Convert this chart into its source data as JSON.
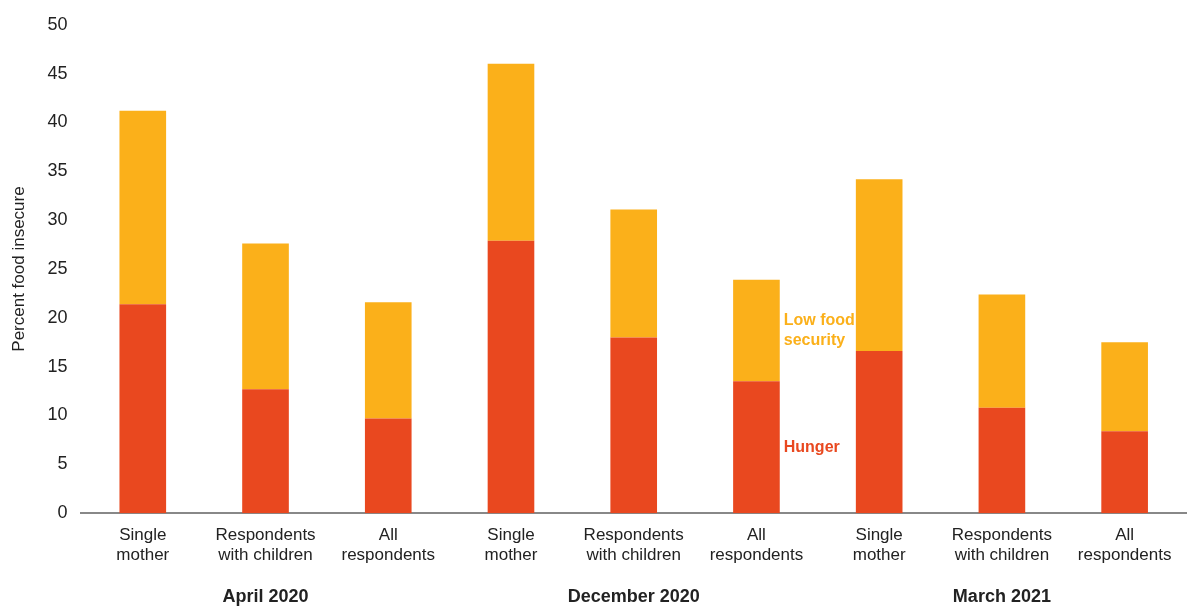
{
  "chart_data": {
    "type": "bar",
    "stacked": true,
    "ylabel": "Percent food insecure",
    "categories": [
      "Single mother",
      "Respondents with children",
      "All respondents",
      "Single mother",
      "Respondents with children",
      "All respondents",
      "Single mother",
      "Respondents with children",
      "All respondents"
    ],
    "series": [
      {
        "name": "Hunger",
        "color": "#e9481f",
        "values": [
          21.4,
          12.7,
          9.7,
          27.9,
          18.0,
          13.5,
          16.6,
          10.8,
          8.4
        ]
      },
      {
        "name": "Low food security",
        "color": "#fbb01a",
        "values": [
          19.8,
          14.9,
          11.9,
          18.1,
          13.1,
          10.4,
          17.6,
          11.6,
          9.1
        ]
      }
    ],
    "ylim": [
      0,
      50
    ],
    "yticks": [
      0,
      5,
      10,
      15,
      20,
      25,
      30,
      35,
      40,
      45,
      50
    ],
    "grid": false,
    "legend": false,
    "annotations": [
      "April 2020",
      "December 2020",
      "March 2021"
    ]
  }
}
